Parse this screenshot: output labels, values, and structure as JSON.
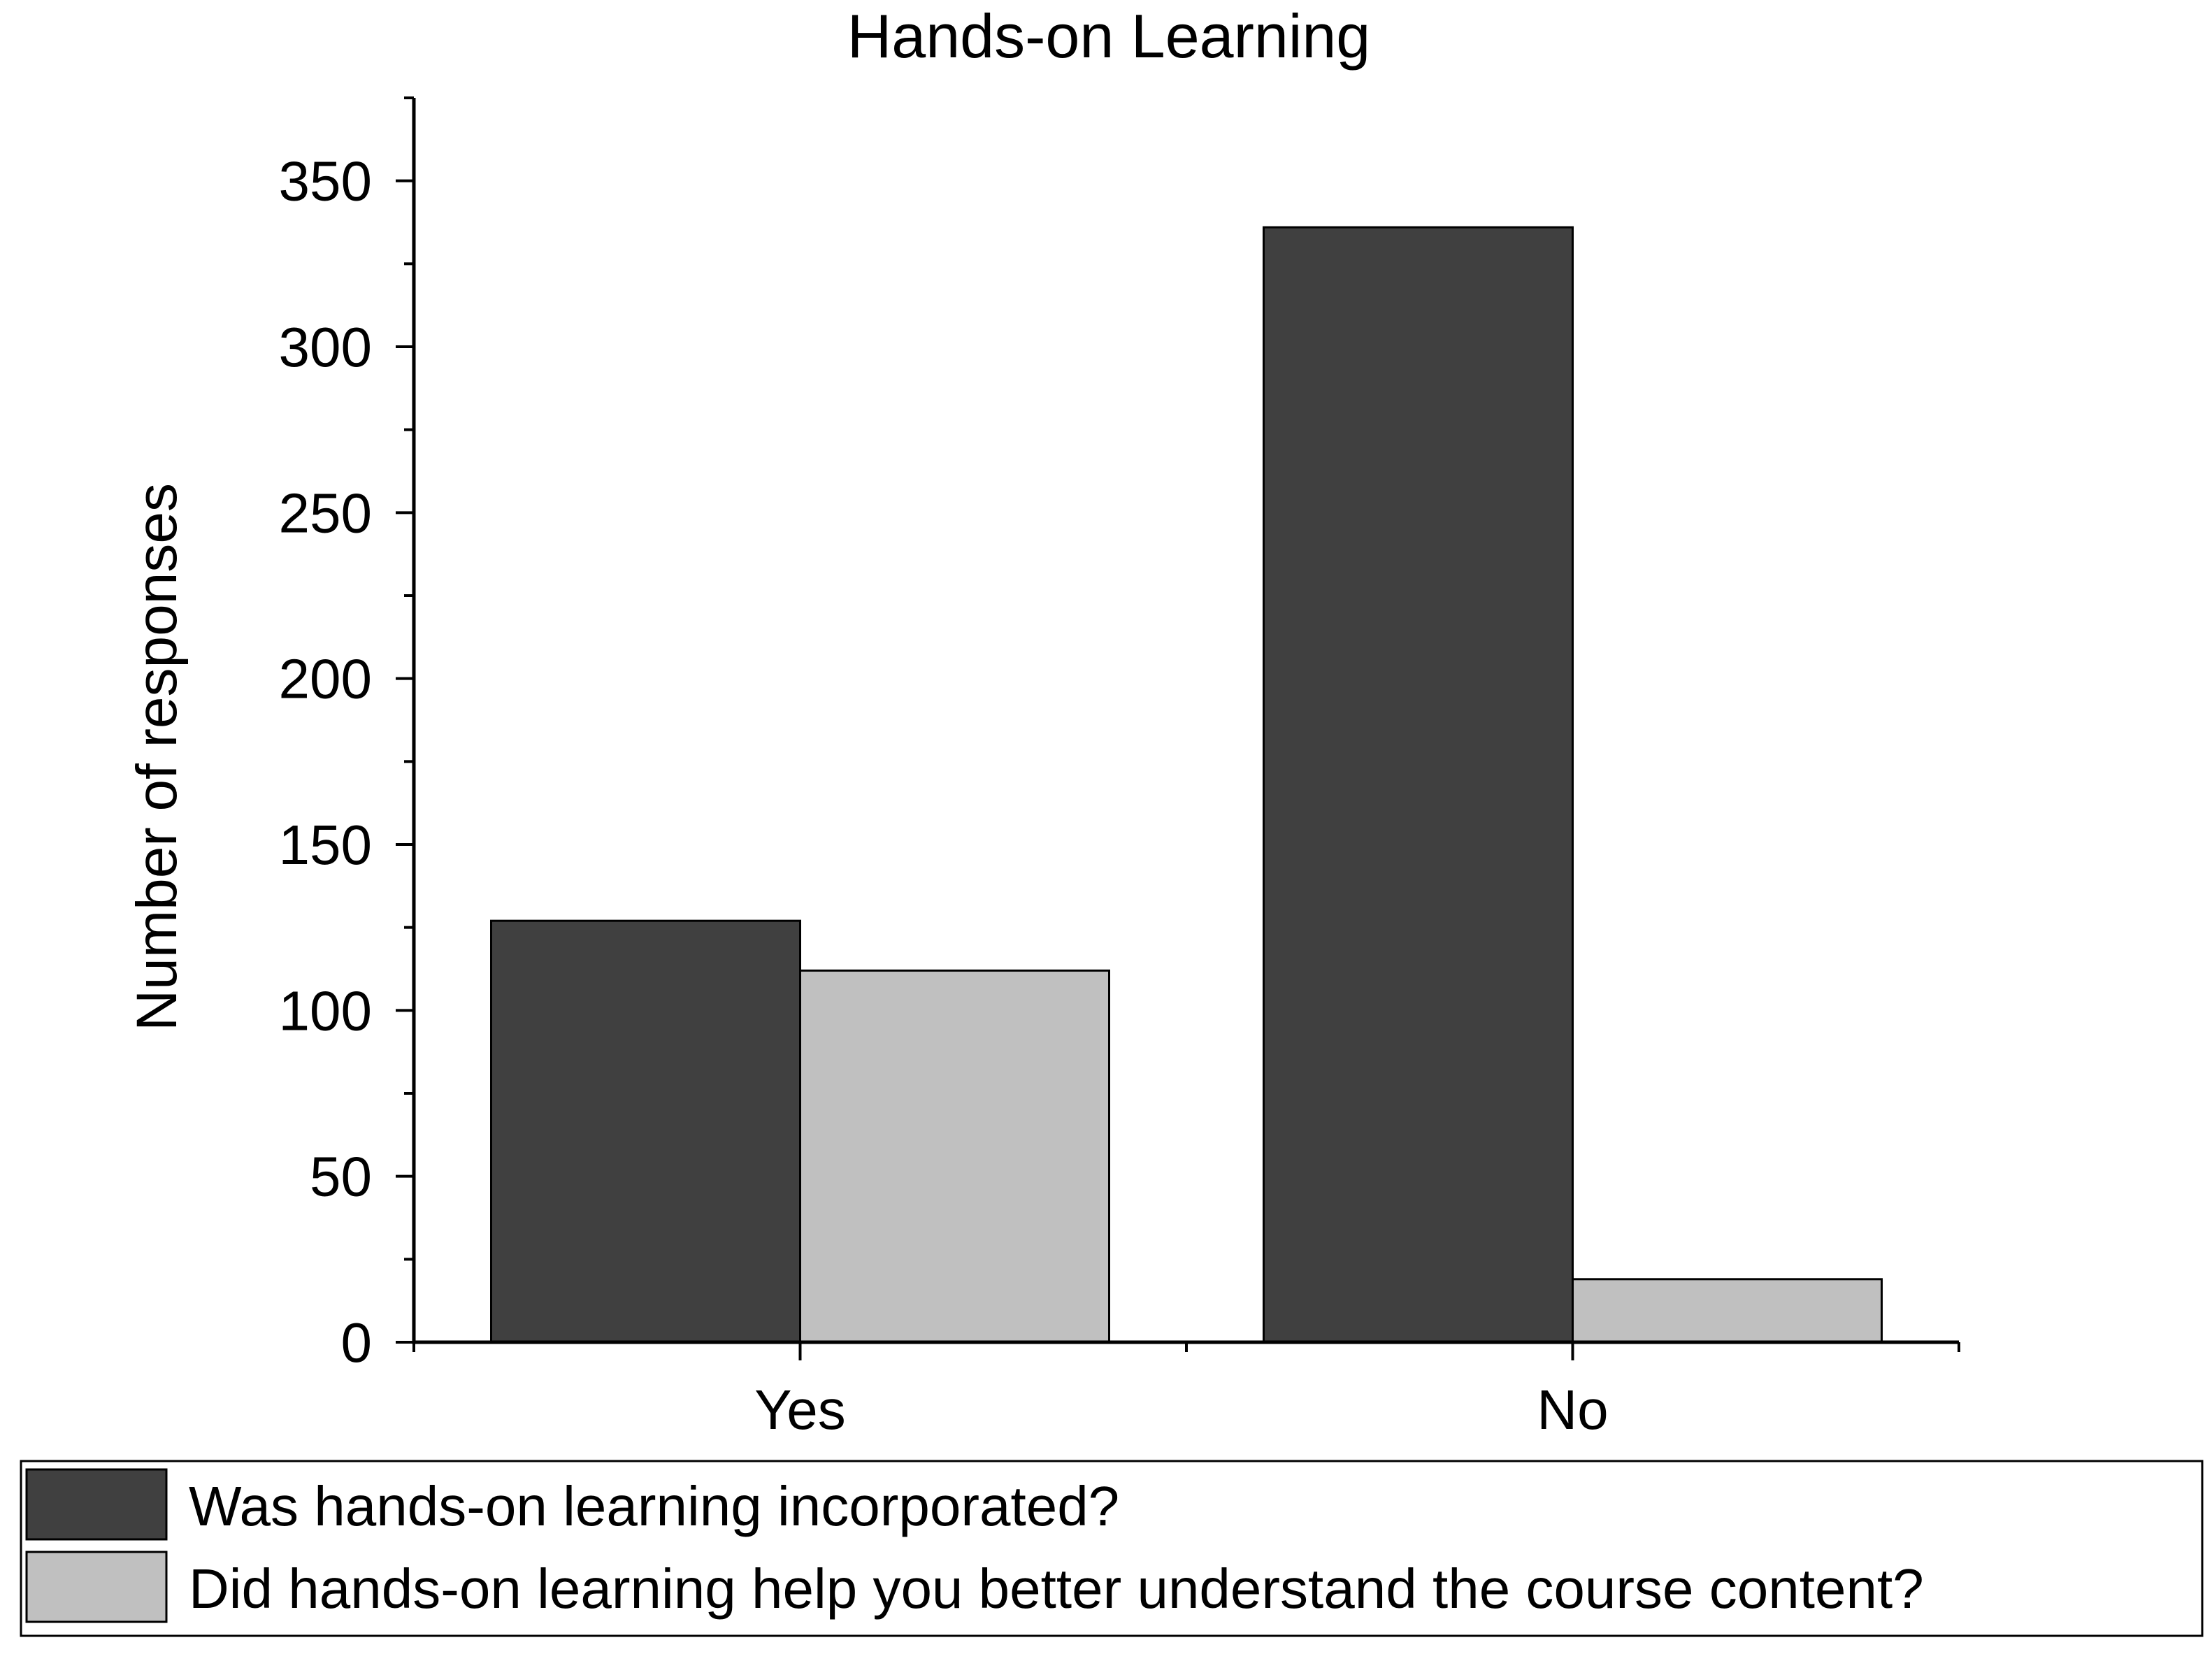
{
  "chart_data": {
    "type": "bar",
    "title": "Hands-on Learning",
    "xlabel": "",
    "ylabel": "Number of responses",
    "categories": [
      "Yes",
      "No"
    ],
    "series": [
      {
        "name": "Was hands-on learning incorporated?",
        "values": [
          127,
          336
        ],
        "color": "#404040"
      },
      {
        "name": "Did hands-on learning help you better understand the course content?",
        "values": [
          112,
          19
        ],
        "color": "#c0c0c0"
      }
    ],
    "ylim": [
      0,
      375
    ],
    "yticks": [
      0,
      50,
      100,
      150,
      200,
      250,
      300,
      350
    ],
    "y_minor_step": 25,
    "grid": false,
    "legend_position": "bottom"
  }
}
